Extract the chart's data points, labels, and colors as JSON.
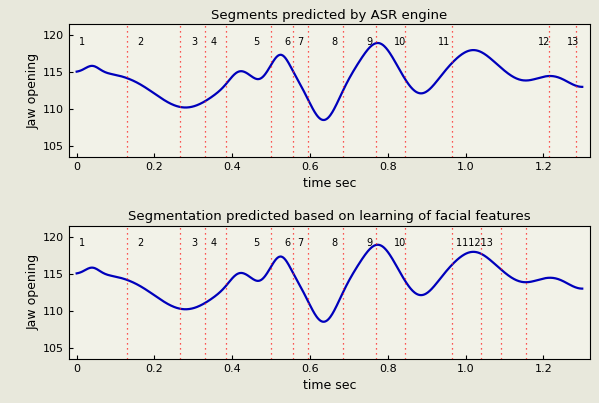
{
  "title1": "Segments predicted by ASR engine",
  "title2": "Segmentation predicted based on learning of facial features",
  "xlabel": "time sec",
  "ylabel": "Jaw opening",
  "ylim": [
    103.5,
    121.5
  ],
  "xlim": [
    -0.02,
    1.32
  ],
  "yticks": [
    105,
    110,
    115,
    120
  ],
  "xticks": [
    0,
    0.2,
    0.4,
    0.6,
    0.8,
    1.0,
    1.2
  ],
  "line_color": "#0000bb",
  "vline_color": "#ff2020",
  "fig_bg": "#e8e8dc",
  "axes_bg": "#f2f2e8",
  "vlines_top": [
    0.13,
    0.265,
    0.33,
    0.385,
    0.5,
    0.555,
    0.595,
    0.685,
    0.77,
    0.845,
    0.965,
    1.215,
    1.285
  ],
  "vlines_bottom": [
    0.13,
    0.265,
    0.33,
    0.385,
    0.5,
    0.555,
    0.595,
    0.685,
    0.77,
    0.845,
    0.965,
    1.04,
    1.09,
    1.155
  ],
  "labels_top_x": [
    0.005,
    0.155,
    0.295,
    0.345,
    0.455,
    0.535,
    0.568,
    0.655,
    0.745,
    0.815,
    0.93,
    1.185,
    1.26
  ],
  "labels_top": [
    "1",
    "2",
    "3",
    "4",
    "5",
    "6",
    "7",
    "8",
    "9",
    "10",
    "11",
    "12",
    "13"
  ],
  "labels_bottom_x": [
    0.005,
    0.155,
    0.295,
    0.345,
    0.455,
    0.535,
    0.568,
    0.655,
    0.745,
    0.815,
    0.975,
    1.045,
    1.1
  ],
  "labels_bottom": [
    "1",
    "2",
    "3",
    "4",
    "5",
    "6",
    "7",
    "8",
    "9",
    "10",
    "11​12​13",
    "",
    ""
  ],
  "figsize": [
    5.99,
    4.03
  ],
  "dpi": 100
}
